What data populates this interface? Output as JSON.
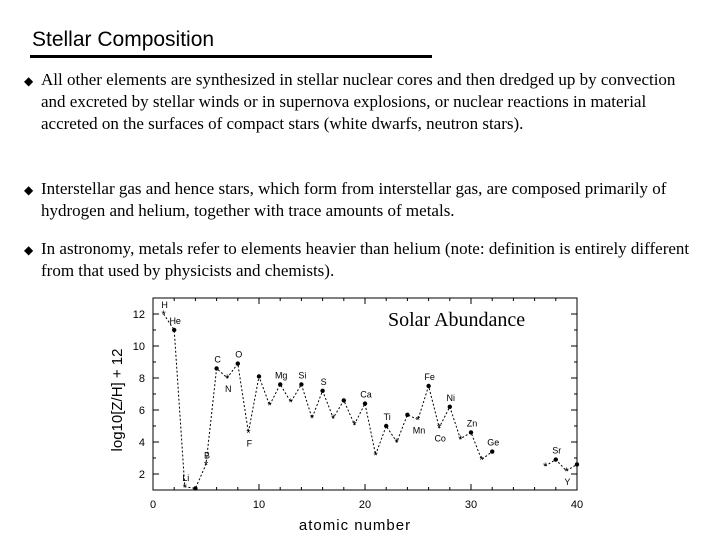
{
  "slide": {
    "title": "Stellar Composition",
    "bullets": [
      "All other elements are synthesized in stellar nuclear cores and then dredged up by convection and excreted by stellar winds or in supernova explosions, or nuclear reactions in material accreted on the surfaces of compact stars (white dwarfs, neutron stars).",
      "Interstellar gas and hence stars, which form from interstellar gas, are composed primarily of hydrogen and helium, together with trace amounts of metals.",
      "In astronomy, metals refer to elements heavier than helium (note: definition is entirely different from that used by physicists and chemists)."
    ],
    "bullet_icon": "diamond-bullet-icon"
  },
  "chart_data": {
    "type": "line",
    "legend_label": "Solar Abundance",
    "legend_placement": "top-right",
    "xlabel": "atomic number",
    "ylabel": "log10[Z/H] + 12",
    "xlim": [
      0,
      40
    ],
    "ylim": [
      1,
      13
    ],
    "x_ticks": [
      "0",
      "10",
      "20",
      "30",
      "40"
    ],
    "y_ticks": [
      "2",
      "4",
      "6",
      "8",
      "10",
      "12"
    ],
    "grid": false,
    "series": [
      {
        "x": [
          1,
          2,
          3,
          4,
          5,
          6,
          7,
          8,
          9,
          10,
          11,
          12,
          13,
          14,
          15,
          16,
          17,
          18,
          19,
          20,
          21,
          22,
          23,
          24,
          25,
          26,
          27,
          28,
          29,
          30,
          31,
          32
        ],
        "y": [
          12.0,
          11.0,
          1.2,
          1.1,
          2.6,
          8.6,
          8.0,
          8.9,
          4.6,
          8.1,
          6.3,
          7.6,
          6.5,
          7.6,
          5.5,
          7.2,
          5.5,
          6.6,
          5.1,
          6.4,
          3.2,
          5.0,
          4.0,
          5.7,
          5.4,
          7.5,
          4.9,
          6.2,
          4.2,
          4.6,
          2.9,
          3.4
        ],
        "labels": {
          "1": "H",
          "2": "He",
          "3": "Li",
          "5": "B",
          "6": "C",
          "7": "N",
          "8": "O",
          "9": "F",
          "12": "Mg",
          "14": "Si",
          "16": "S",
          "20": "Ca",
          "22": "Ti",
          "25": "Mn",
          "26": "Fe",
          "27": "Co",
          "28": "Ni",
          "30": "Zn",
          "32": "Ge"
        }
      },
      {
        "x": [
          37,
          38,
          39,
          40
        ],
        "y": [
          2.5,
          2.9,
          2.2,
          2.6
        ],
        "labels": {
          "38": "Sr",
          "39": "Y"
        }
      }
    ]
  }
}
